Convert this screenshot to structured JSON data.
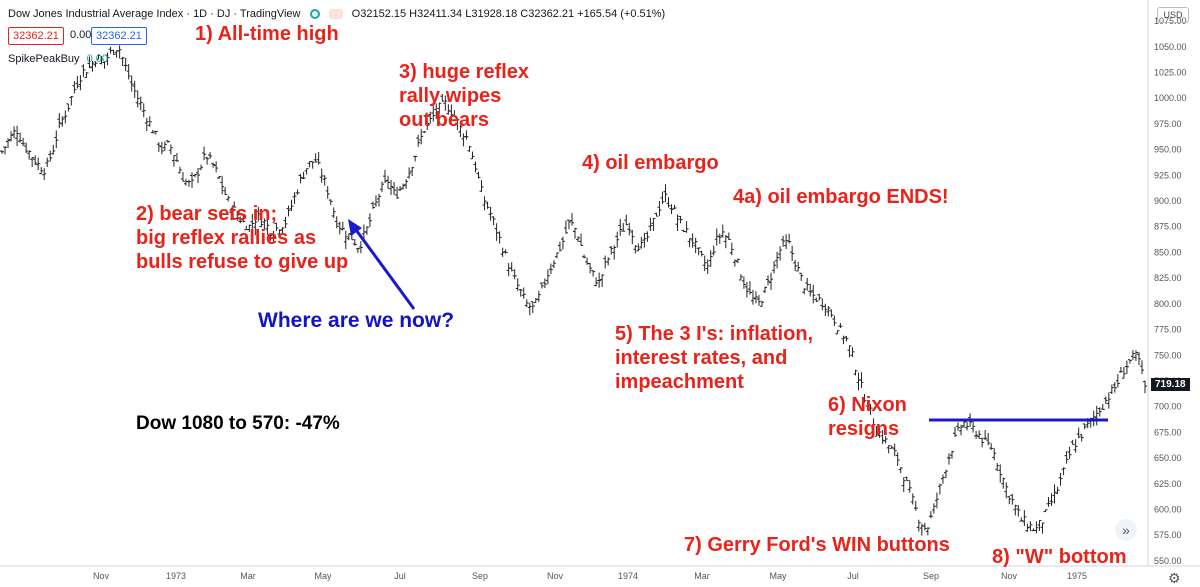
{
  "header": {
    "title": "Dow Jones Industrial Average Index · 1D · DJ · TradingView",
    "ohlc": "O32152.15 H32411.34 L31928.18 C32362.21 +165.54 (+0.51%)",
    "sell_price": "32362.21",
    "spread": "0.00",
    "buy_price": "32362.21",
    "indicator_name": "SpikePeakBuy",
    "indicator_value": "0.00",
    "currency": "USD",
    "last_price": "719.18"
  },
  "annotations": {
    "a1": "1) All-time high",
    "a2": "2) bear sets in;\nbig reflex rallies as\nbulls refuse to give up",
    "a3": "3) huge reflex\nrally wipes\nout bears",
    "a4": "4) oil embargo",
    "a4a": "4a) oil embargo ENDS!",
    "a5": "5) The 3 I's: inflation,\ninterest rates, and\nimpeachment",
    "a6": "6) Nixon\nresigns",
    "a7": "7) Gerry Ford's WIN buttons",
    "a8": "8) \"W\" bottom",
    "where": "Where are we now?",
    "drop": "Dow 1080 to 570: -47%"
  },
  "chart_data": {
    "type": "ohlc",
    "x_ticks": [
      "Nov",
      "1973",
      "Mar",
      "May",
      "Jul",
      "Sep",
      "Nov",
      "1974",
      "Mar",
      "May",
      "Jul",
      "Sep",
      "Nov",
      "1975"
    ],
    "y_ticks": [
      1075,
      1050,
      1025,
      1000,
      975,
      950,
      925,
      900,
      875,
      850,
      825,
      800,
      775,
      750,
      725,
      700,
      675,
      650,
      625,
      600,
      575,
      550
    ],
    "ylim": [
      545,
      1080
    ],
    "resistance_level": 687,
    "series": [
      {
        "values": [
          948,
          960,
          970,
          955,
          945,
          935,
          930,
          950,
          975,
          990,
          1010,
          1025,
          1030,
          1040,
          1035,
          1045,
          1051,
          1030,
          1010,
          995,
          980,
          965,
          950,
          955,
          940,
          920,
          915,
          930,
          945,
          935,
          920,
          900,
          890,
          880,
          875,
          885,
          880,
          870,
          875,
          880,
          900,
          920,
          935,
          940,
          925,
          905,
          880,
          870,
          865,
          855,
          870,
          890,
          910,
          920,
          905,
          915,
          930,
          950,
          970,
          980,
          990,
          995,
          985,
          970,
          960,
          935,
          905,
          890,
          870,
          850,
          830,
          815,
          800,
          795,
          810,
          830,
          845,
          860,
          880,
          870,
          845,
          830,
          820,
          840,
          855,
          870,
          880,
          860,
          855,
          870,
          890,
          905,
          895,
          880,
          870,
          860,
          845,
          835,
          860,
          870,
          860,
          840,
          820,
          805,
          800,
          815,
          835,
          855,
          860,
          840,
          820,
          810,
          805,
          800,
          790,
          775,
          765,
          745,
          720,
          700,
          680,
          670,
          660,
          650,
          630,
          610,
          590,
          580,
          600,
          625,
          650,
          670,
          685,
          680,
          675,
          665,
          660,
          640,
          620,
          605,
          590,
          585,
          580,
          590,
          605,
          620,
          640,
          660,
          670,
          680,
          690,
          700,
          710,
          720,
          735,
          745,
          750,
          719
        ]
      }
    ]
  }
}
